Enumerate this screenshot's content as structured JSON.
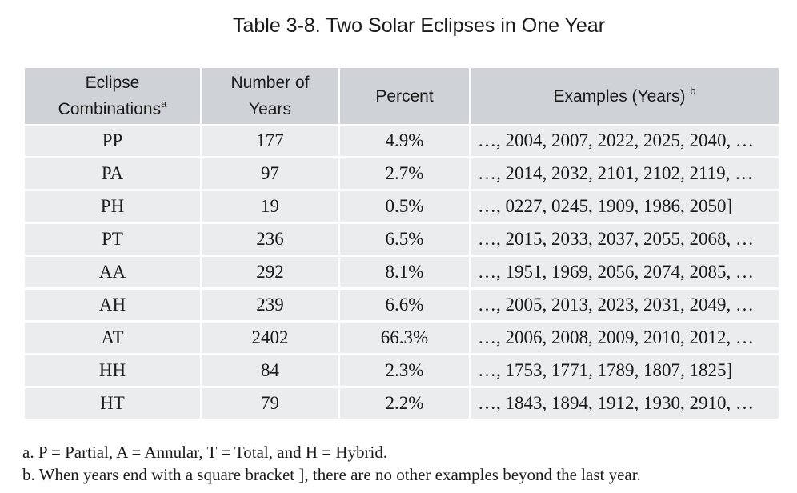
{
  "title": "Table 3-8. Two Solar Eclipses in One Year",
  "table": {
    "headers": {
      "col1_line1": "Eclipse",
      "col1_line2": "Combinations",
      "col1_sup": "a",
      "col2_line1": "Number of",
      "col2_line2": "Years",
      "col3": "Percent",
      "col4": "Examples (Years) ",
      "col4_sup": "b"
    },
    "rows": [
      {
        "combo": "PP",
        "years": "177",
        "percent": "4.9%",
        "examples": "…, 2004, 2007, 2022, 2025, 2040, …"
      },
      {
        "combo": "PA",
        "years": "97",
        "percent": "2.7%",
        "examples": "…, 2014, 2032, 2101, 2102, 2119, …"
      },
      {
        "combo": "PH",
        "years": "19",
        "percent": "0.5%",
        "examples": "…, 0227, 0245, 1909, 1986, 2050]"
      },
      {
        "combo": "PT",
        "years": "236",
        "percent": "6.5%",
        "examples": "…, 2015, 2033, 2037, 2055, 2068, …"
      },
      {
        "combo": "AA",
        "years": "292",
        "percent": "8.1%",
        "examples": "…, 1951, 1969, 2056, 2074, 2085, …"
      },
      {
        "combo": "AH",
        "years": "239",
        "percent": "6.6%",
        "examples": "…, 2005, 2013, 2023, 2031, 2049, …"
      },
      {
        "combo": "AT",
        "years": "2402",
        "percent": "66.3%",
        "examples": "…, 2006, 2008, 2009, 2010, 2012, …"
      },
      {
        "combo": "HH",
        "years": "84",
        "percent": "2.3%",
        "examples": "…, 1753, 1771, 1789, 1807, 1825]"
      },
      {
        "combo": "HT",
        "years": "79",
        "percent": "2.2%",
        "examples": "…, 1843, 1894, 1912, 1930, 2910, …"
      }
    ]
  },
  "notes": {
    "a": "a. P = Partial, A = Annular, T = Total, and H = Hybrid.",
    "b": "b. When years end with a square bracket ], there are no other examples beyond the last year."
  }
}
